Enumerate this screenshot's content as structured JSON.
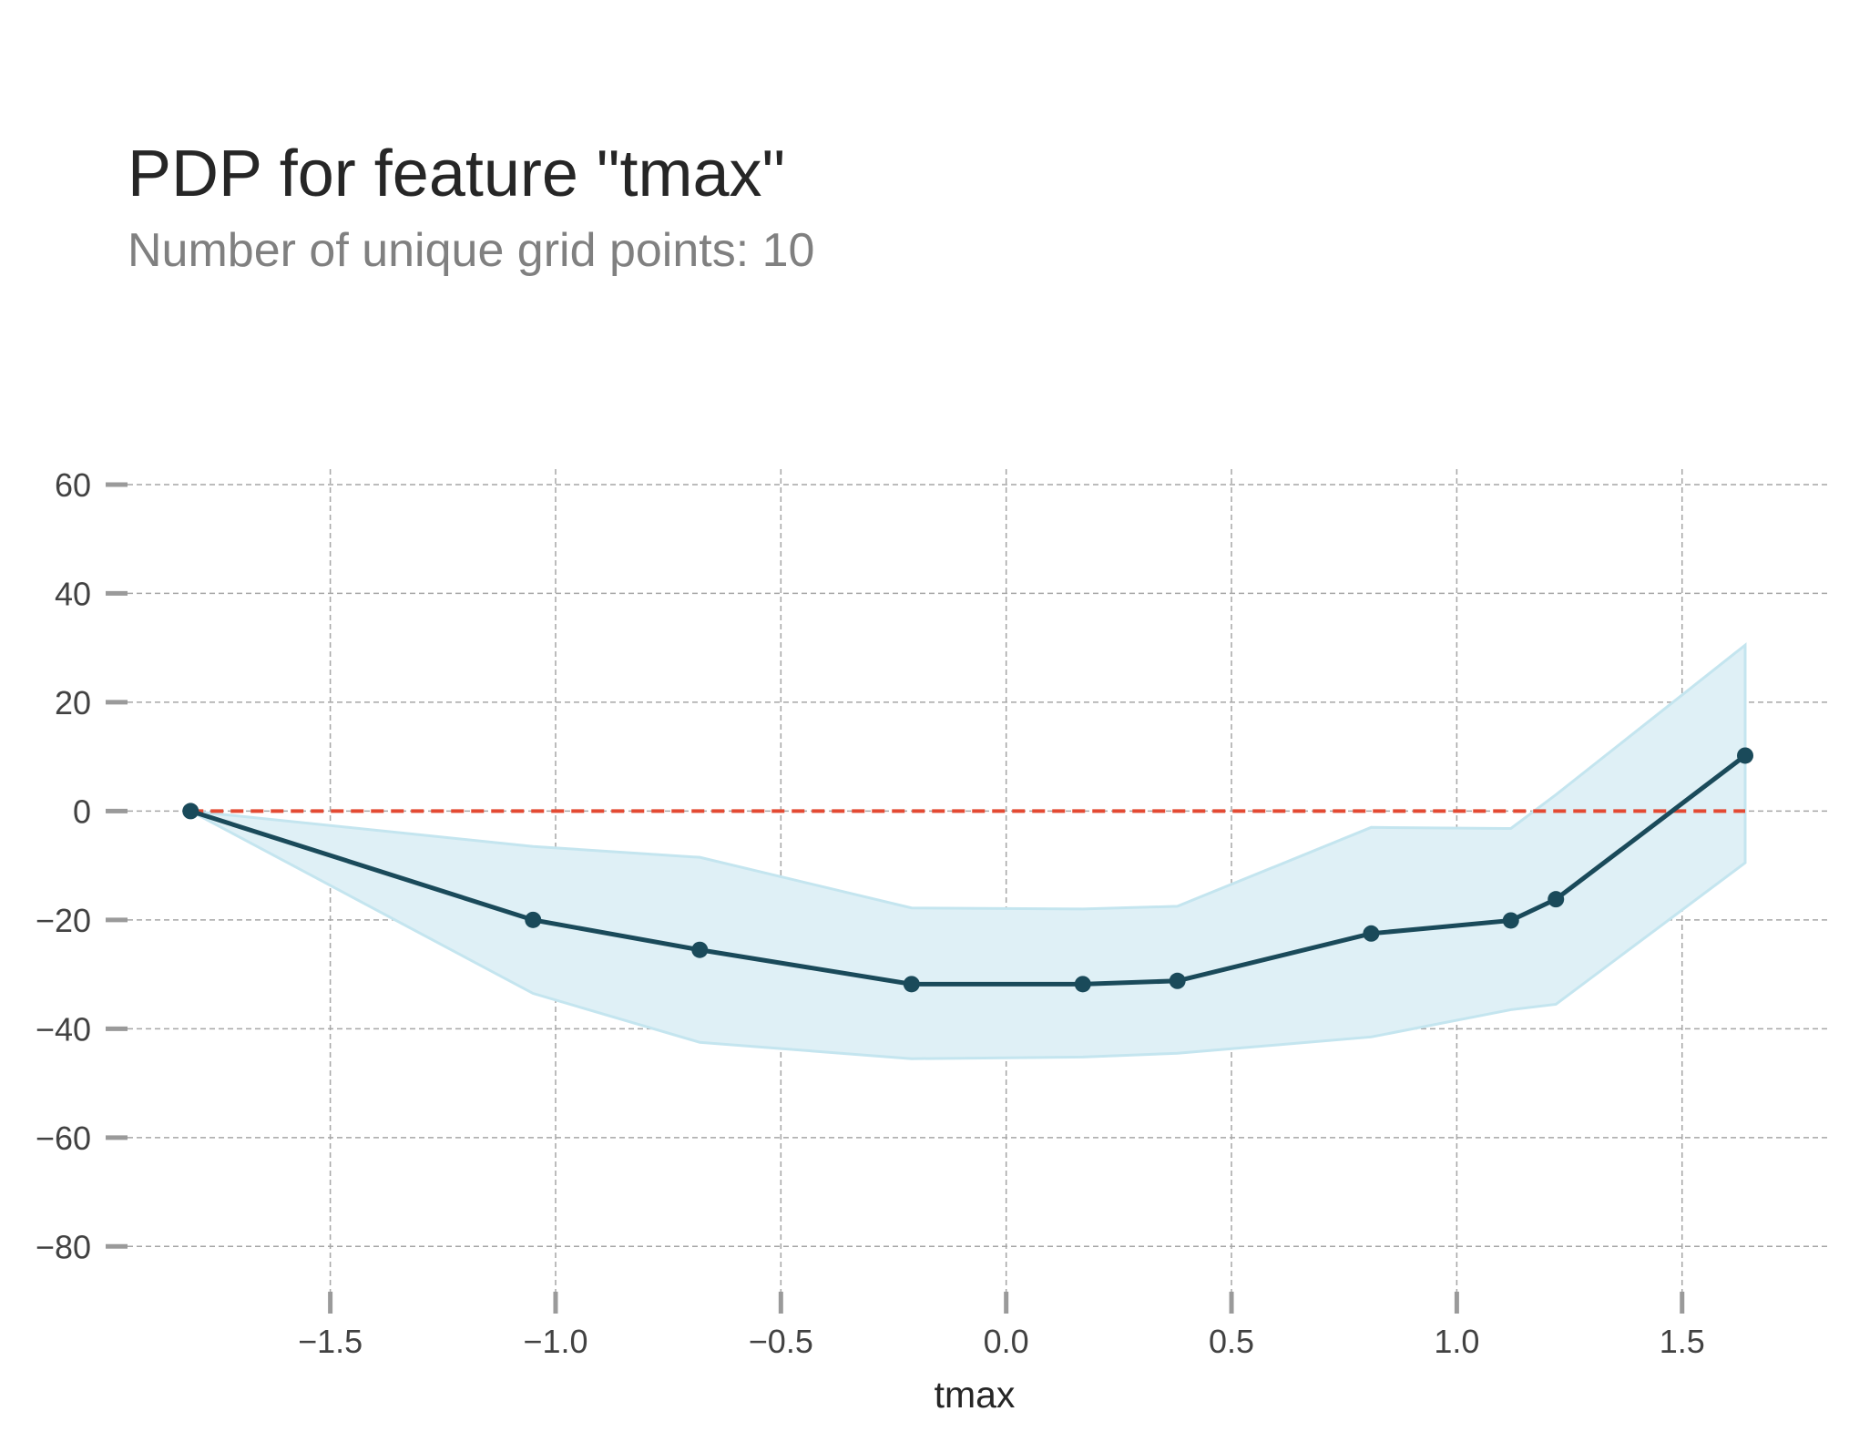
{
  "chart_data": {
    "type": "line",
    "title": "PDP for feature \"tmax\"",
    "subtitle": "Number of unique grid points: 10",
    "xlabel": "tmax",
    "ylabel": "",
    "xlim": [
      -1.95,
      1.83
    ],
    "ylim": [
      -92,
      62
    ],
    "x_ticks": [
      -1.5,
      -1.0,
      -0.5,
      0.0,
      0.5,
      1.0,
      1.5
    ],
    "x_tick_labels": [
      "−1.5",
      "−1.0",
      "−0.5",
      "0.0",
      "0.5",
      "1.0",
      "1.5"
    ],
    "y_ticks": [
      60,
      40,
      20,
      0,
      -20,
      -40,
      -60,
      -80
    ],
    "y_tick_labels": [
      "60",
      "40",
      "20",
      "0",
      "−20",
      "−40",
      "−60",
      "−80"
    ],
    "grid": true,
    "series": [
      {
        "x": [
          -1.81,
          -1.05,
          -0.68,
          -0.21,
          0.17,
          0.38,
          0.81,
          1.12,
          1.22,
          1.64
        ],
        "y": [
          0,
          -20,
          -25.5,
          -31.8,
          -31.8,
          -31.2,
          -22.5,
          -20.1,
          -16.2,
          10.2
        ],
        "upper": [
          0,
          -6.5,
          -8.5,
          -17.8,
          -18,
          -17.5,
          -3,
          -3.2,
          3,
          30.5
        ],
        "lower": [
          0,
          -33.5,
          -42.5,
          -45.5,
          -45.2,
          -44.5,
          -41.5,
          -36.5,
          -35.5,
          -9.5
        ]
      }
    ],
    "reference_line": {
      "y": 0,
      "style": "dashed"
    },
    "colors": {
      "line": "#1a4a5a",
      "band": "#dff0f6",
      "band_edge": "#c4e5ef",
      "reference": "#e34a33",
      "grid": "#a6a6a6",
      "tick": "#9a9a9a"
    }
  }
}
